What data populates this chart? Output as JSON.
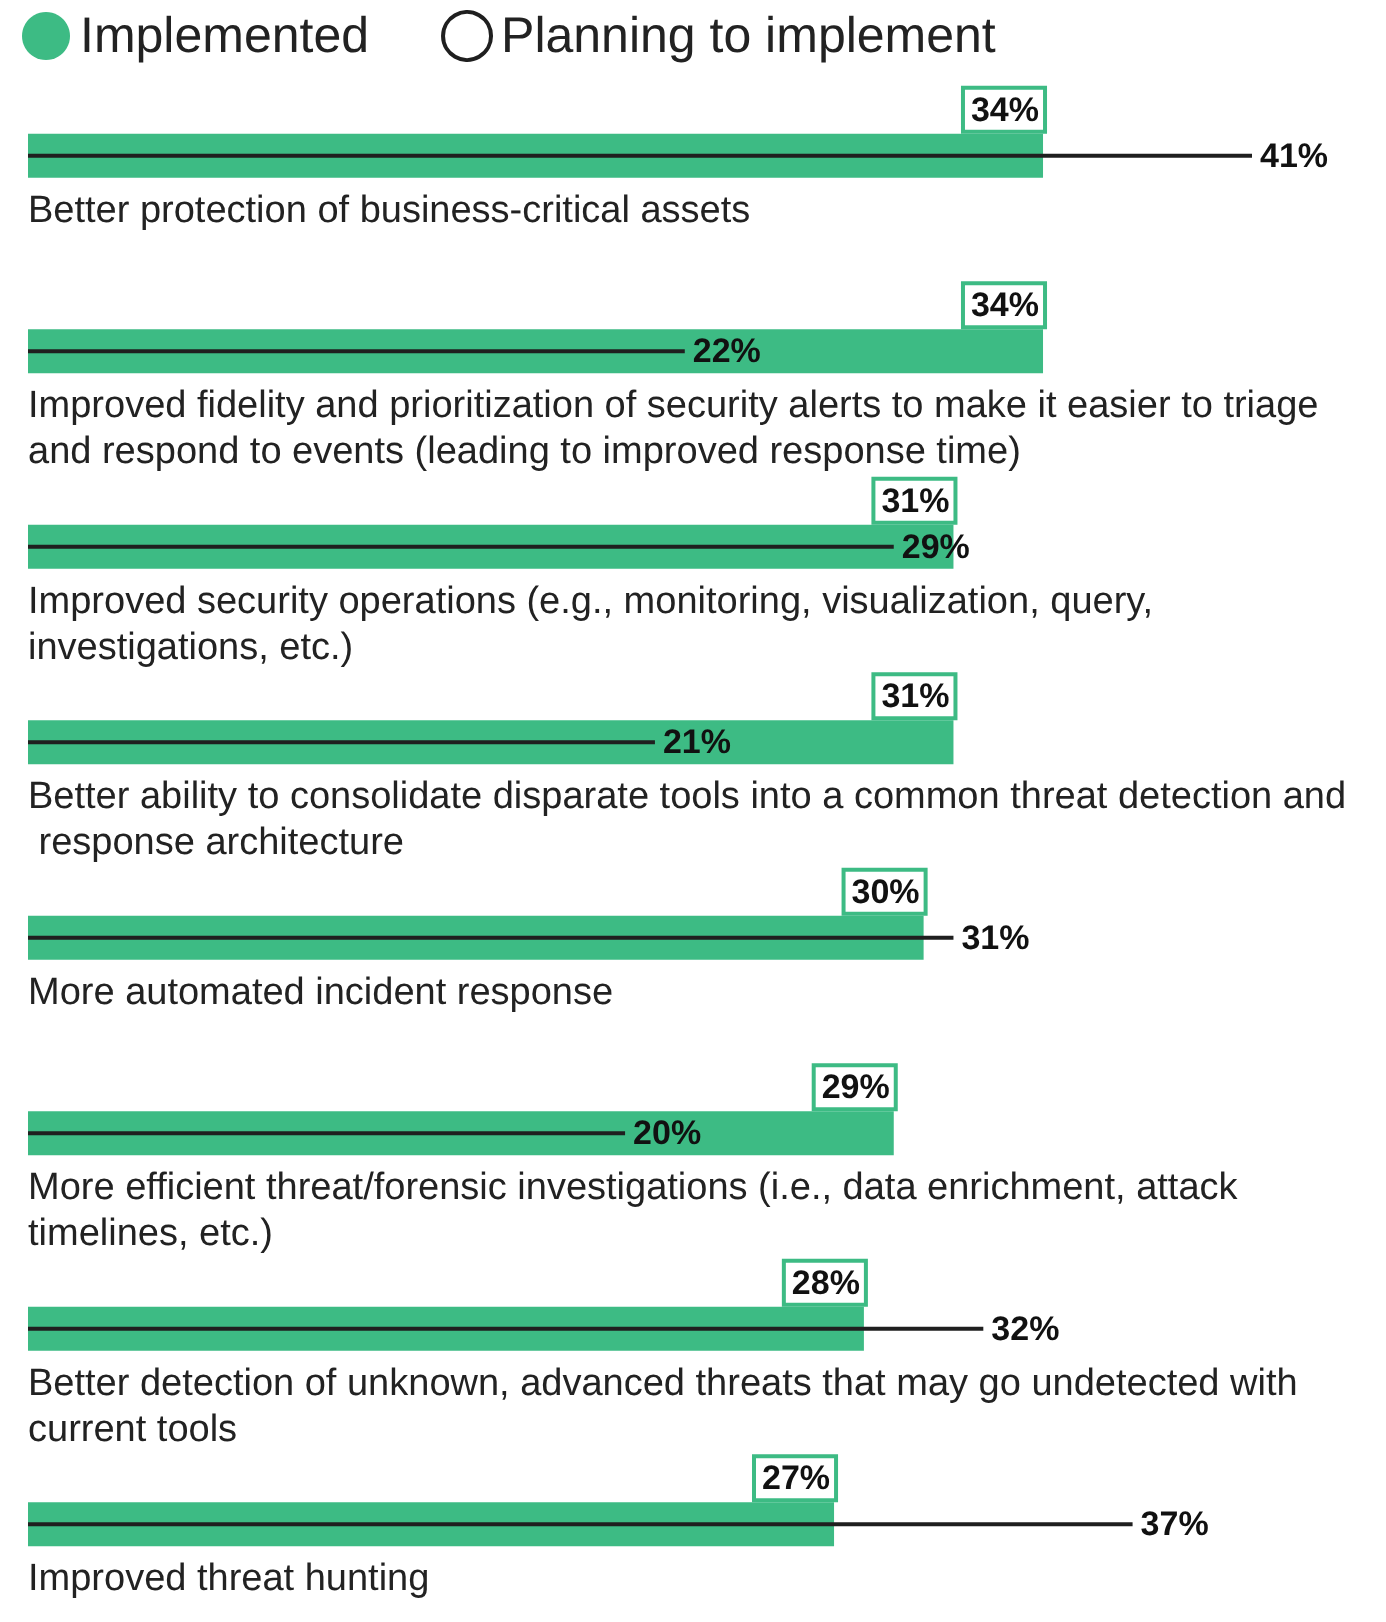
{
  "chart_data": {
    "type": "bar",
    "orientation": "horizontal",
    "legend": "top left",
    "categories": [
      "Better protection of business-critical assets",
      "Improved fidelity and prioritization of security alerts to make it easier to triage and respond to events (leading to improved response time)",
      "Improved security operations (e.g., monitoring, visualization, query, investigations, etc.)",
      "Better ability to consolidate disparate tools into a common threat detection and response architecture",
      "More automated incident response",
      "More efficient threat/forensic investigations (i.e., data enrichment, attack timelines, etc.)",
      "Better detection of unknown, advanced threats that may go undetected with current tools",
      "Improved threat hunting"
    ],
    "series": [
      {
        "name": "Implemented",
        "color": "#3dbb84",
        "values": [
          34,
          34,
          31,
          31,
          30,
          29,
          28,
          27
        ],
        "value_labels": [
          "34%",
          "34%",
          "31%",
          "31%",
          "30%",
          "29%",
          "28%",
          "27%"
        ]
      },
      {
        "name": "Planning to implement",
        "color": "#1f1f1f",
        "values": [
          41,
          22,
          29,
          21,
          31,
          20,
          32,
          37
        ],
        "value_labels": [
          "41%",
          "22%",
          "29%",
          "21%",
          "31%",
          "20%",
          "32%",
          "37%"
        ]
      }
    ]
  }
}
